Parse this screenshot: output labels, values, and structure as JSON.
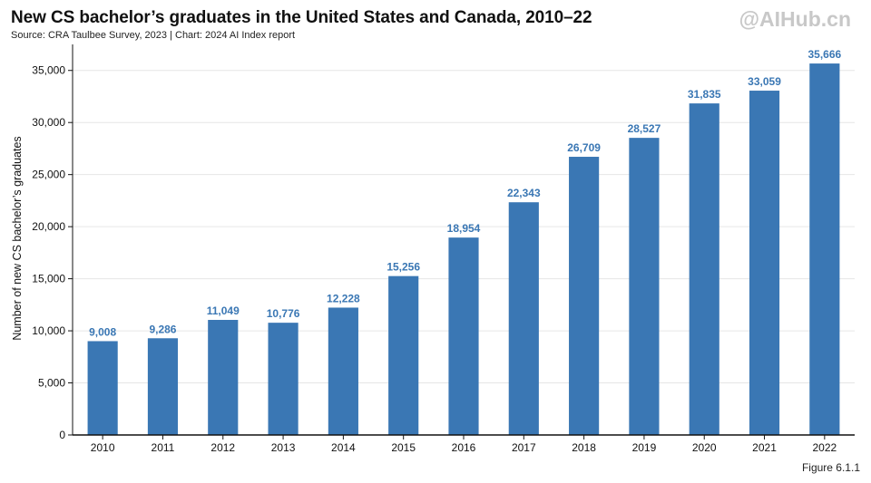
{
  "header": {
    "title": "New CS bachelor’s graduates in the United States and Canada, 2010–22",
    "subtitle": "Source: CRA Taulbee Survey, 2023 | Chart: 2024 AI Index report",
    "watermark": "@AIHub.cn"
  },
  "footer": {
    "figure_label": "Figure 6.1.1"
  },
  "colors": {
    "bar": "#3a77b4",
    "label": "#3a77b4",
    "grid": "#e6e6e6",
    "axis": "#111111"
  },
  "chart_data": {
    "type": "bar",
    "title": "New CS bachelor’s graduates in the United States and Canada, 2010–22",
    "xlabel": "",
    "ylabel": "Number of new CS bachelor’s graduates",
    "ylim": [
      0,
      37500
    ],
    "yticks": [
      0,
      5000,
      10000,
      15000,
      20000,
      25000,
      30000,
      35000
    ],
    "ytick_labels": [
      "0",
      "5,000",
      "10,000",
      "15,000",
      "20,000",
      "25,000",
      "30,000",
      "35,000"
    ],
    "grid": true,
    "categories": [
      "2010",
      "2011",
      "2012",
      "2013",
      "2014",
      "2015",
      "2016",
      "2017",
      "2018",
      "2019",
      "2020",
      "2021",
      "2022"
    ],
    "values": [
      9008,
      9286,
      11049,
      10776,
      12228,
      15256,
      18954,
      22343,
      26709,
      28527,
      31835,
      33059,
      35666
    ],
    "data_labels": [
      "9,008",
      "9,286",
      "11,049",
      "10,776",
      "12,228",
      "15,256",
      "18,954",
      "22,343",
      "26,709",
      "28,527",
      "31,835",
      "33,059",
      "35,666"
    ]
  }
}
